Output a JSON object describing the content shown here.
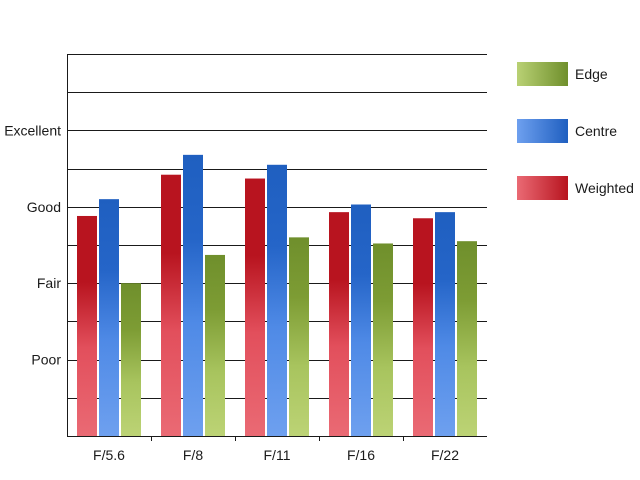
{
  "chart_data": {
    "type": "bar",
    "title": "",
    "xlabel": "",
    "ylabel": "",
    "categories": [
      "F/5.6",
      "F/8",
      "F/11",
      "F/16",
      "F/22"
    ],
    "y_ticks": [
      {
        "value": 1,
        "label": "Poor"
      },
      {
        "value": 2,
        "label": "Fair"
      },
      {
        "value": 3,
        "label": "Good"
      },
      {
        "value": 4,
        "label": "Excellent"
      }
    ],
    "ylim": [
      0,
      5
    ],
    "grid": true,
    "legend_position": "right",
    "series": [
      {
        "name": "Weighted",
        "values": [
          2.88,
          3.42,
          3.37,
          2.93,
          2.85
        ],
        "color": "#d4303c"
      },
      {
        "name": "Centre",
        "values": [
          3.1,
          3.68,
          3.55,
          3.03,
          2.93
        ],
        "color": "#3a7fd8"
      },
      {
        "name": "Edge",
        "values": [
          2.0,
          2.37,
          2.6,
          2.52,
          2.55
        ],
        "color": "#94b54a"
      }
    ],
    "legend_order": [
      "Edge",
      "Centre",
      "Weighted"
    ]
  }
}
